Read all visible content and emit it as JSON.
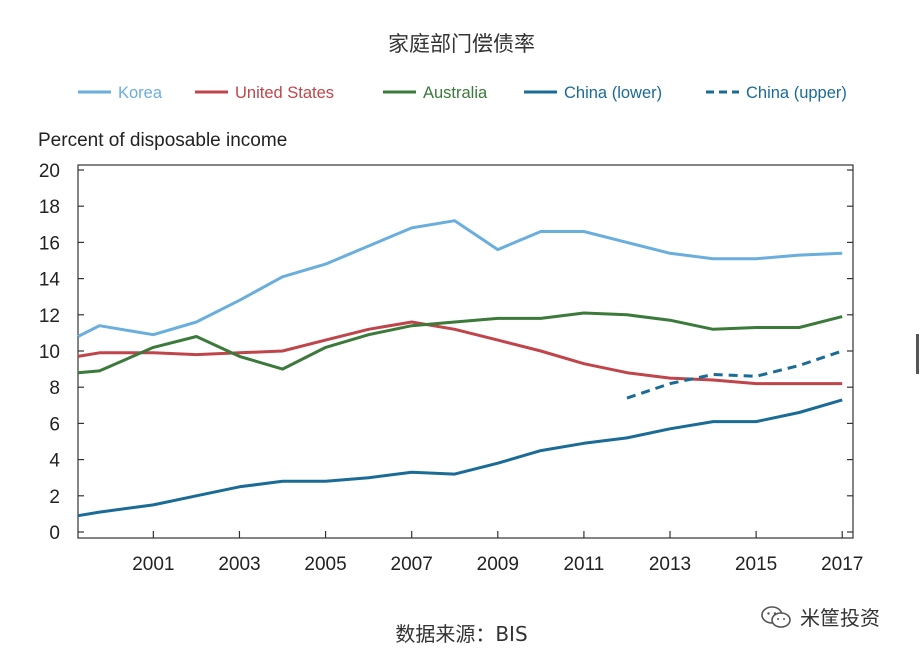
{
  "title": "家庭部门偿债率",
  "source": "数据来源：BIS",
  "watermark": "米筐投资",
  "chart_data": {
    "type": "line",
    "title": "家庭部门偿债率",
    "ylabel": "Percent of disposable income",
    "xlabel": "",
    "xlim": [
      1999.25,
      2017.25
    ],
    "ylim": [
      0,
      20
    ],
    "yticks": [
      0,
      2,
      4,
      6,
      8,
      10,
      12,
      14,
      16,
      18,
      20
    ],
    "xticks": [
      2001,
      2003,
      2005,
      2007,
      2009,
      2011,
      2013,
      2015,
      2017
    ],
    "xtick_labels": [
      "2001",
      "2003",
      "2005",
      "2007",
      "2009",
      "2011",
      "2013",
      "2015",
      "2017"
    ],
    "grid": false,
    "legend_position": "top",
    "series": [
      {
        "name": "Korea",
        "color": "#6aaedd",
        "dash": "solid",
        "x": [
          1999.25,
          1999.75,
          2001,
          2002,
          2003,
          2004,
          2005,
          2006,
          2007,
          2008,
          2009,
          2010,
          2011,
          2012,
          2013,
          2014,
          2015,
          2016,
          2017
        ],
        "y": [
          10.8,
          11.4,
          10.9,
          11.6,
          12.8,
          14.1,
          14.8,
          15.8,
          16.8,
          17.2,
          15.6,
          16.6,
          16.6,
          16.0,
          15.4,
          15.1,
          15.1,
          15.3,
          15.4
        ]
      },
      {
        "name": "United States",
        "color": "#c0454a",
        "dash": "solid",
        "x": [
          1999.25,
          1999.75,
          2001,
          2002,
          2003,
          2004,
          2005,
          2006,
          2007,
          2008,
          2009,
          2010,
          2011,
          2012,
          2013,
          2014,
          2015,
          2016,
          2017
        ],
        "y": [
          9.7,
          9.9,
          9.9,
          9.8,
          9.9,
          10.0,
          10.6,
          11.2,
          11.6,
          11.2,
          10.6,
          10.0,
          9.3,
          8.8,
          8.5,
          8.4,
          8.2,
          8.2,
          8.2
        ]
      },
      {
        "name": "Australia",
        "color": "#3b7a3b",
        "dash": "solid",
        "x": [
          1999.25,
          1999.75,
          2001,
          2002,
          2003,
          2004,
          2005,
          2006,
          2007,
          2008,
          2009,
          2010,
          2011,
          2012,
          2013,
          2014,
          2015,
          2016,
          2017
        ],
        "y": [
          8.8,
          8.9,
          10.2,
          10.8,
          9.7,
          9.0,
          10.2,
          10.9,
          11.4,
          11.6,
          11.8,
          11.8,
          12.1,
          12.0,
          11.7,
          11.2,
          11.3,
          11.3,
          11.9
        ]
      },
      {
        "name": "China (lower)",
        "color": "#1a6b96",
        "dash": "solid",
        "x": [
          1999.25,
          1999.75,
          2001,
          2002,
          2003,
          2004,
          2005,
          2006,
          2007,
          2008,
          2009,
          2010,
          2011,
          2012,
          2013,
          2014,
          2015,
          2016,
          2017
        ],
        "y": [
          0.9,
          1.1,
          1.5,
          2.0,
          2.5,
          2.8,
          2.8,
          3.0,
          3.3,
          3.2,
          3.8,
          4.5,
          4.9,
          5.2,
          5.7,
          6.1,
          6.1,
          6.6,
          7.3
        ]
      },
      {
        "name": "China (upper)",
        "color": "#1a6b96",
        "dash": "dashed",
        "x": [
          2012,
          2013,
          2014,
          2015,
          2016,
          2017
        ],
        "y": [
          7.4,
          8.2,
          8.7,
          8.6,
          9.2,
          10.0
        ]
      }
    ]
  }
}
